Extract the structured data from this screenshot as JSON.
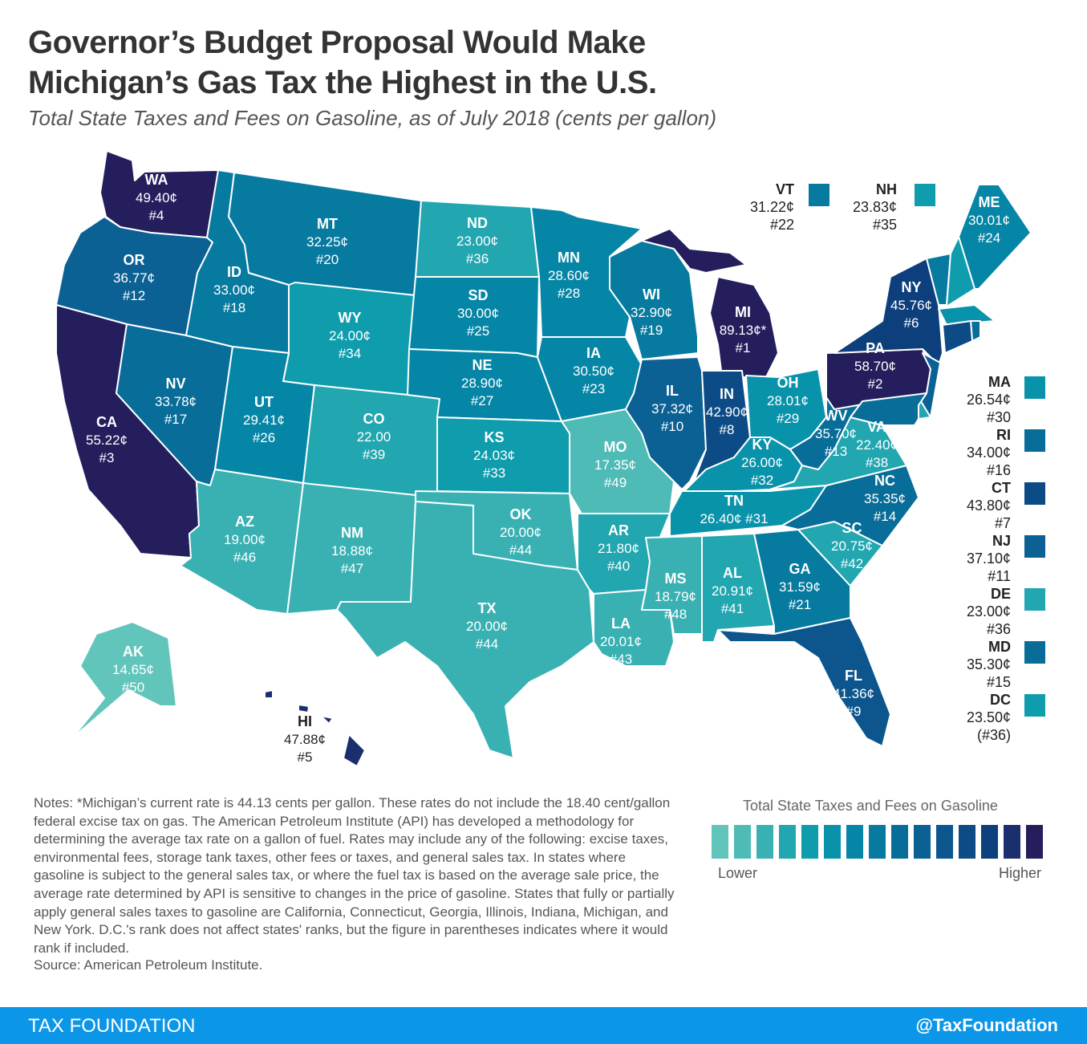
{
  "header": {
    "title_line1": "Governor’s Budget Proposal Would Make",
    "title_line2": "Michigan’s Gas Tax the Highest in the U.S.",
    "subtitle": "Total State Taxes and Fees on Gasoline, as of July 2018 (cents per gallon)"
  },
  "colors": {
    "scale": [
      "#62c5bc",
      "#4ebbb7",
      "#39b1b3",
      "#22a6b0",
      "#0f9cad",
      "#0993ab",
      "#0686a6",
      "#077aa0",
      "#096d99",
      "#0b6194",
      "#0c568d",
      "#0d4b86",
      "#0e3f7d",
      "#1b2f6e",
      "#241e5d"
    ],
    "footer": "#0c96e8"
  },
  "states": [
    {
      "abbr": "WA",
      "value": "49.40¢",
      "rank": "#4",
      "v": 49.4
    },
    {
      "abbr": "OR",
      "value": "36.77¢",
      "rank": "#12",
      "v": 36.77
    },
    {
      "abbr": "CA",
      "value": "55.22¢",
      "rank": "#3",
      "v": 55.22
    },
    {
      "abbr": "NV",
      "value": "33.78¢",
      "rank": "#17",
      "v": 33.78
    },
    {
      "abbr": "ID",
      "value": "33.00¢",
      "rank": "#18",
      "v": 33.0
    },
    {
      "abbr": "MT",
      "value": "32.25¢",
      "rank": "#20",
      "v": 32.25
    },
    {
      "abbr": "WY",
      "value": "24.00¢",
      "rank": "#34",
      "v": 24.0
    },
    {
      "abbr": "UT",
      "value": "29.41¢",
      "rank": "#26",
      "v": 29.41
    },
    {
      "abbr": "AZ",
      "value": "19.00¢",
      "rank": "#46",
      "v": 19.0
    },
    {
      "abbr": "CO",
      "value": "22.00",
      "rank": "#39",
      "v": 22.0
    },
    {
      "abbr": "NM",
      "value": "18.88¢",
      "rank": "#47",
      "v": 18.88
    },
    {
      "abbr": "ND",
      "value": "23.00¢",
      "rank": "#36",
      "v": 23.0
    },
    {
      "abbr": "SD",
      "value": "30.00¢",
      "rank": "#25",
      "v": 30.0
    },
    {
      "abbr": "NE",
      "value": "28.90¢",
      "rank": "#27",
      "v": 28.9
    },
    {
      "abbr": "KS",
      "value": "24.03¢",
      "rank": "#33",
      "v": 24.03
    },
    {
      "abbr": "OK",
      "value": "20.00¢",
      "rank": "#44",
      "v": 20.0
    },
    {
      "abbr": "TX",
      "value": "20.00¢",
      "rank": "#44",
      "v": 20.0
    },
    {
      "abbr": "MN",
      "value": "28.60¢",
      "rank": "#28",
      "v": 28.6
    },
    {
      "abbr": "IA",
      "value": "30.50¢",
      "rank": "#23",
      "v": 30.5
    },
    {
      "abbr": "MO",
      "value": "17.35¢",
      "rank": "#49",
      "v": 17.35
    },
    {
      "abbr": "AR",
      "value": "21.80¢",
      "rank": "#40",
      "v": 21.8
    },
    {
      "abbr": "LA",
      "value": "20.01¢",
      "rank": "#43",
      "v": 20.01
    },
    {
      "abbr": "WI",
      "value": "32.90¢",
      "rank": "#19",
      "v": 32.9
    },
    {
      "abbr": "IL",
      "value": "37.32¢",
      "rank": "#10",
      "v": 37.32
    },
    {
      "abbr": "MI",
      "value": "89.13¢*",
      "rank": "#1",
      "v": 89.13
    },
    {
      "abbr": "IN",
      "value": "42.90¢",
      "rank": "#8",
      "v": 42.9
    },
    {
      "abbr": "OH",
      "value": "28.01¢",
      "rank": "#29",
      "v": 28.01
    },
    {
      "abbr": "KY",
      "value": "26.00¢",
      "rank": "#32",
      "v": 26.0
    },
    {
      "abbr": "TN",
      "value": "26.40¢",
      "rank": "#31",
      "v": 26.4
    },
    {
      "abbr": "MS",
      "value": "18.79¢",
      "rank": "#48",
      "v": 18.79
    },
    {
      "abbr": "AL",
      "value": "20.91¢",
      "rank": "#41",
      "v": 20.91
    },
    {
      "abbr": "GA",
      "value": "31.59¢",
      "rank": "#21",
      "v": 31.59
    },
    {
      "abbr": "FL",
      "value": "41.36¢",
      "rank": "#9",
      "v": 41.36
    },
    {
      "abbr": "SC",
      "value": "20.75¢",
      "rank": "#42",
      "v": 20.75
    },
    {
      "abbr": "NC",
      "value": "35.35¢",
      "rank": "#14",
      "v": 35.35
    },
    {
      "abbr": "VA",
      "value": "22.40¢",
      "rank": "#38",
      "v": 22.4
    },
    {
      "abbr": "WV",
      "value": "35.70¢",
      "rank": "#13",
      "v": 35.7
    },
    {
      "abbr": "PA",
      "value": "58.70¢",
      "rank": "#2",
      "v": 58.7
    },
    {
      "abbr": "NY",
      "value": "45.76¢",
      "rank": "#6",
      "v": 45.76
    },
    {
      "abbr": "ME",
      "value": "30.01¢",
      "rank": "#24",
      "v": 30.01
    },
    {
      "abbr": "AK",
      "value": "14.65¢",
      "rank": "#50",
      "v": 14.65
    },
    {
      "abbr": "HI",
      "value": "47.88¢",
      "rank": "#5",
      "v": 47.88
    }
  ],
  "side_states": [
    {
      "abbr": "VT",
      "value": "31.22¢",
      "rank": "#22",
      "v": 31.22
    },
    {
      "abbr": "NH",
      "value": "23.83¢",
      "rank": "#35",
      "v": 23.83
    },
    {
      "abbr": "MA",
      "value": "26.54¢",
      "rank": "#30",
      "v": 26.54
    },
    {
      "abbr": "RI",
      "value": "34.00¢",
      "rank": "#16",
      "v": 34.0
    },
    {
      "abbr": "CT",
      "value": "43.80¢",
      "rank": "#7",
      "v": 43.8
    },
    {
      "abbr": "NJ",
      "value": "37.10¢",
      "rank": "#11",
      "v": 37.1
    },
    {
      "abbr": "DE",
      "value": "23.00¢",
      "rank": "#36",
      "v": 23.0
    },
    {
      "abbr": "MD",
      "value": "35.30¢",
      "rank": "#15",
      "v": 35.3
    },
    {
      "abbr": "DC",
      "value": "23.50¢",
      "rank": "(#36)",
      "v": 23.5
    }
  ],
  "notes": "Notes: *Michigan’s current rate is 44.13 cents per gallon. These rates do not include the 18.40 cent/gallon federal excise tax on gas. The American Petroleum Institute (API) has developed a methodology for determining the average tax rate on a gallon of fuel. Rates may include any of the following: excise taxes, environmental fees, storage tank taxes, other fees or taxes, and general sales tax. In states where gasoline is subject to the general sales tax, or where the fuel tax is based on the average sale price, the average rate determined by API is sensitive to changes in the price of gasoline. States that fully or partially apply general sales taxes to gasoline are California, Connecticut, Georgia, Illinois, Indiana, Michigan, and New York. D.C.'s rank does not affect states' ranks, but the figure in parentheses indicates where it would rank if included.",
  "source": "Source: American Petroleum Institute.",
  "legend": {
    "title": "Total State Taxes and Fees on Gasoline",
    "low": "Lower",
    "high": "Higher"
  },
  "footer": {
    "brand": "TAX FOUNDATION",
    "handle": "@TaxFoundation"
  }
}
